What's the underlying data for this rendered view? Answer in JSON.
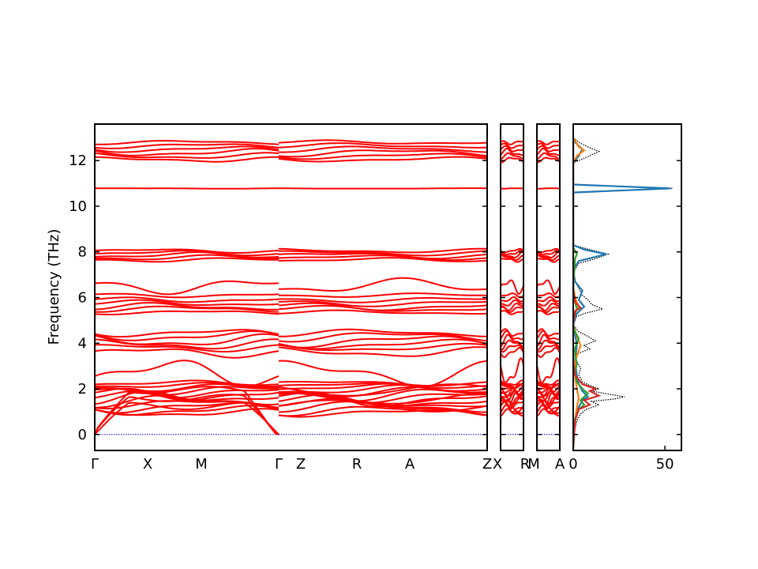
{
  "chart_data": {
    "type": "line",
    "ylabel": "Frequency (THz)",
    "ylim": [
      -0.7,
      13.6
    ],
    "yticks": [
      0,
      2,
      4,
      6,
      8,
      10,
      12
    ],
    "ytick_labels": [
      "0",
      "2",
      "4",
      "6",
      "8",
      "10",
      "12"
    ],
    "band_color": "#ff0000",
    "zero_line_color": "#0000cc",
    "panels": [
      {
        "key": "main",
        "segments": [
          {
            "labels": [
              "Γ",
              "X",
              "M",
              "Γ"
            ]
          },
          {
            "labels": [
              "Z",
              "R",
              "A",
              "Z"
            ]
          }
        ]
      },
      {
        "key": "xr",
        "segments": [
          {
            "labels": [
              "X",
              "R"
            ]
          }
        ]
      },
      {
        "key": "ma",
        "segments": [
          {
            "labels": [
              "M",
              "A"
            ]
          }
        ]
      }
    ],
    "bands": [
      {
        "kind": "acoustic",
        "center": 1.25
      },
      {
        "kind": "acoustic",
        "center": 1.6
      },
      {
        "kind": "acoustic",
        "center": 1.95
      },
      {
        "kind": "flat",
        "center": 0.95,
        "amp": 0.15
      },
      {
        "kind": "flat",
        "center": 1.05,
        "amp": 0.2
      },
      {
        "kind": "flat",
        "center": 1.2,
        "amp": 0.22
      },
      {
        "kind": "flat",
        "center": 1.35,
        "amp": 0.18
      },
      {
        "kind": "flat",
        "center": 1.45,
        "amp": 0.25
      },
      {
        "kind": "flat",
        "center": 1.55,
        "amp": 0.3
      },
      {
        "kind": "flat",
        "center": 1.65,
        "amp": 0.22
      },
      {
        "kind": "flat",
        "center": 1.75,
        "amp": 0.25
      },
      {
        "kind": "flat",
        "center": 1.85,
        "amp": 0.2
      },
      {
        "kind": "flat",
        "center": 1.95,
        "amp": 0.18
      },
      {
        "kind": "flat",
        "center": 2.05,
        "amp": 0.15
      },
      {
        "kind": "flat",
        "center": 2.15,
        "amp": 0.1
      },
      {
        "kind": "flat",
        "center": 2.25,
        "amp": 0.1
      },
      {
        "kind": "flat",
        "center": 2.7,
        "amp": 0.55
      },
      {
        "kind": "flat",
        "center": 3.6,
        "amp": 0.2
      },
      {
        "kind": "flat",
        "center": 3.8,
        "amp": 0.15
      },
      {
        "kind": "flat",
        "center": 3.95,
        "amp": 0.2
      },
      {
        "kind": "flat",
        "center": 4.1,
        "amp": 0.25
      },
      {
        "kind": "flat",
        "center": 4.3,
        "amp": 0.2
      },
      {
        "kind": "flat",
        "center": 4.45,
        "amp": 0.15
      },
      {
        "kind": "flat",
        "center": 5.35,
        "amp": 0.08
      },
      {
        "kind": "flat",
        "center": 5.5,
        "amp": 0.12
      },
      {
        "kind": "flat",
        "center": 5.6,
        "amp": 0.15
      },
      {
        "kind": "flat",
        "center": 5.75,
        "amp": 0.12
      },
      {
        "kind": "flat",
        "center": 5.9,
        "amp": 0.1
      },
      {
        "kind": "flat",
        "center": 6.1,
        "amp": 0.08
      },
      {
        "kind": "flat",
        "center": 6.5,
        "amp": 0.3
      },
      {
        "kind": "flat",
        "center": 7.65,
        "amp": 0.08
      },
      {
        "kind": "flat",
        "center": 7.75,
        "amp": 0.1
      },
      {
        "kind": "flat",
        "center": 7.85,
        "amp": 0.12
      },
      {
        "kind": "flat",
        "center": 7.95,
        "amp": 0.1
      },
      {
        "kind": "flat",
        "center": 8.05,
        "amp": 0.08
      },
      {
        "kind": "flat",
        "center": 10.78,
        "amp": 0.01
      },
      {
        "kind": "flat",
        "center": 12.05,
        "amp": 0.1
      },
      {
        "kind": "flat",
        "center": 12.2,
        "amp": 0.12
      },
      {
        "kind": "flat",
        "center": 12.35,
        "amp": 0.15
      },
      {
        "kind": "flat",
        "center": 12.5,
        "amp": 0.12
      },
      {
        "kind": "flat",
        "center": 12.65,
        "amp": 0.1
      },
      {
        "kind": "flat",
        "center": 12.8,
        "amp": 0.08
      }
    ],
    "dos": {
      "xticks": [
        0,
        50
      ],
      "xtick_labels": [
        "0",
        "50"
      ],
      "xlim": [
        0,
        59
      ],
      "series": [
        {
          "kind": "total",
          "color": "#000000",
          "style": "dotted",
          "points": [
            [
              0,
              -0.6
            ],
            [
              0.5,
              0.1
            ],
            [
              2,
              0.6
            ],
            [
              4,
              0.9
            ],
            [
              7,
              1.1
            ],
            [
              14,
              1.3
            ],
            [
              10,
              1.45
            ],
            [
              22,
              1.55
            ],
            [
              28,
              1.65
            ],
            [
              17,
              1.8
            ],
            [
              10,
              1.9
            ],
            [
              14,
              2.0
            ],
            [
              9,
              2.15
            ],
            [
              5,
              2.3
            ],
            [
              3,
              2.6
            ],
            [
              4,
              2.9
            ],
            [
              2,
              3.2
            ],
            [
              1,
              3.5
            ],
            [
              9,
              3.75
            ],
            [
              6,
              3.9
            ],
            [
              12,
              4.1
            ],
            [
              8,
              4.3
            ],
            [
              3,
              4.5
            ],
            [
              0,
              4.8
            ],
            [
              0,
              5.1
            ],
            [
              6,
              5.3
            ],
            [
              16,
              5.5
            ],
            [
              10,
              5.7
            ],
            [
              8,
              5.9
            ],
            [
              5,
              6.1
            ],
            [
              3,
              6.4
            ],
            [
              1,
              6.7
            ],
            [
              0,
              7.1
            ],
            [
              3,
              7.5
            ],
            [
              12,
              7.7
            ],
            [
              19,
              7.9
            ],
            [
              9,
              8.1
            ],
            [
              0,
              8.3
            ],
            [
              0,
              10.6
            ],
            [
              54,
              10.78
            ],
            [
              0,
              10.95
            ],
            [
              0,
              11.9
            ],
            [
              6,
              12.1
            ],
            [
              14,
              12.4
            ],
            [
              8,
              12.6
            ],
            [
              3,
              12.8
            ],
            [
              0,
              13.0
            ]
          ]
        },
        {
          "kind": "partial",
          "color": "#1f77b4",
          "style": "solid",
          "points": [
            [
              0,
              -0.6
            ],
            [
              1,
              0.6
            ],
            [
              3,
              1.2
            ],
            [
              5,
              1.5
            ],
            [
              8,
              1.65
            ],
            [
              5,
              1.9
            ],
            [
              3,
              2.2
            ],
            [
              2,
              2.6
            ],
            [
              1,
              3.2
            ],
            [
              2,
              3.9
            ],
            [
              1,
              4.4
            ],
            [
              0,
              4.8
            ],
            [
              2,
              5.3
            ],
            [
              6,
              5.6
            ],
            [
              3,
              5.9
            ],
            [
              5,
              6.3
            ],
            [
              1,
              6.7
            ],
            [
              0,
              7.2
            ],
            [
              3,
              7.6
            ],
            [
              18,
              7.9
            ],
            [
              6,
              8.1
            ],
            [
              0,
              8.3
            ],
            [
              0,
              10.6
            ],
            [
              53,
              10.78
            ],
            [
              0,
              10.95
            ],
            [
              0,
              11.9
            ],
            [
              3,
              12.2
            ],
            [
              5,
              12.5
            ],
            [
              1,
              12.8
            ],
            [
              0,
              13.0
            ]
          ]
        },
        {
          "kind": "partial",
          "color": "#ff7f0e",
          "style": "solid",
          "points": [
            [
              0,
              -0.6
            ],
            [
              1,
              0.6
            ],
            [
              2,
              1.2
            ],
            [
              3,
              1.6
            ],
            [
              2,
              2.0
            ],
            [
              1,
              2.5
            ],
            [
              1,
              3.2
            ],
            [
              4,
              3.9
            ],
            [
              2,
              4.3
            ],
            [
              0,
              4.8
            ],
            [
              1,
              5.4
            ],
            [
              3,
              5.6
            ],
            [
              1,
              6.0
            ],
            [
              0,
              6.5
            ],
            [
              0,
              11.9
            ],
            [
              2,
              12.2
            ],
            [
              6,
              12.45
            ],
            [
              3,
              12.6
            ],
            [
              0,
              13.0
            ]
          ]
        },
        {
          "kind": "partial",
          "color": "#2ca02c",
          "style": "solid",
          "points": [
            [
              0,
              -0.6
            ],
            [
              1,
              0.7
            ],
            [
              3,
              1.1
            ],
            [
              6,
              1.3
            ],
            [
              4,
              1.5
            ],
            [
              8,
              1.8
            ],
            [
              5,
              2.0
            ],
            [
              2,
              2.3
            ],
            [
              1,
              2.7
            ],
            [
              2,
              3.1
            ],
            [
              1,
              3.5
            ],
            [
              1,
              3.8
            ],
            [
              3,
              4.2
            ],
            [
              1,
              4.5
            ],
            [
              0,
              4.8
            ],
            [
              1,
              5.3
            ],
            [
              2,
              5.5
            ],
            [
              1,
              5.8
            ],
            [
              0,
              6.4
            ],
            [
              1,
              7.7
            ],
            [
              2,
              7.9
            ],
            [
              0,
              8.2
            ],
            [
              0,
              13.0
            ]
          ]
        },
        {
          "kind": "partial",
          "color": "#d62728",
          "style": "solid",
          "points": [
            [
              0,
              -0.6
            ],
            [
              1,
              0.6
            ],
            [
              3,
              1.1
            ],
            [
              9,
              1.3
            ],
            [
              6,
              1.5
            ],
            [
              14,
              1.7
            ],
            [
              9,
              1.9
            ],
            [
              12,
              2.0
            ],
            [
              5,
              2.2
            ],
            [
              1,
              2.6
            ],
            [
              0,
              3.2
            ],
            [
              0,
              4.8
            ],
            [
              1,
              5.4
            ],
            [
              4,
              5.55
            ],
            [
              1,
              5.8
            ],
            [
              0,
              6.3
            ],
            [
              0,
              13.0
            ]
          ]
        }
      ]
    }
  }
}
